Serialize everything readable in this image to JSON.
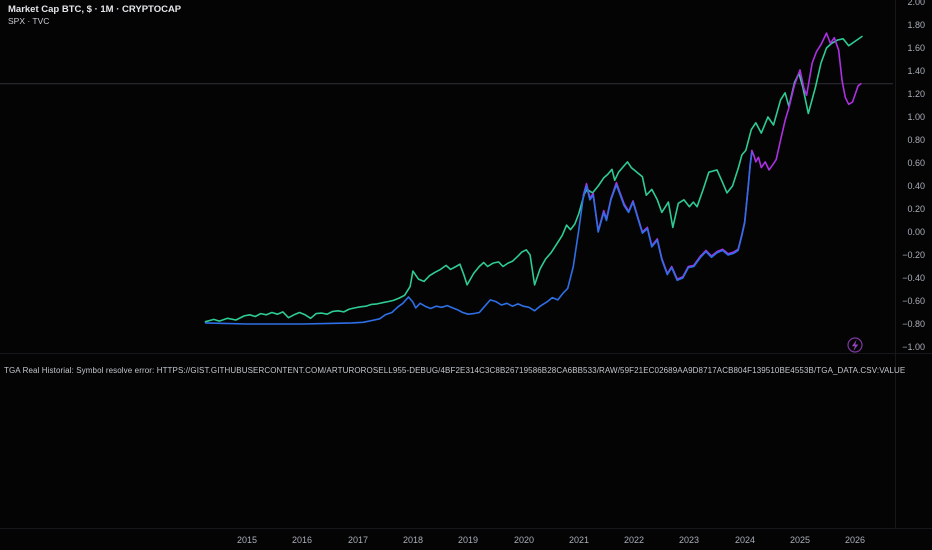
{
  "legend": {
    "primary": "Market Cap BTC, $ · 1M · CRYPTOCAP",
    "secondary": "SPX · TVC"
  },
  "error_bar": {
    "label": "TGA Real Historial: Symbol resolve error: HTTPS://GIST.GITHUBUSERCONTENT.COM/ARTUROROSELL955-DEBUG/4BF2E314C3C8B26719586B28CA6BB533/RAW/59F21EC02689AA9D8717ACB804F139510BE4553B/TGA_DATA.CSV:VALUE"
  },
  "icons": {
    "flash_badge": "lightning-bolt"
  },
  "colors": {
    "background": "#040404",
    "btc_line": "#2e6fe6",
    "spx_line": "#2ecc92",
    "overlay_line": "#ad30e3",
    "axis_text": "#a9aeb8",
    "price_line": "#2f2f37",
    "flash_badge": "#a64bd4"
  },
  "chart_data": {
    "type": "line",
    "title": "Market Cap BTC, $ · 1M · CRYPTOCAP",
    "subtitle": "SPX · TVC",
    "grid": "off",
    "legend_position": "top-left",
    "price_line_value": 1.29,
    "x_axis": {
      "tick_labels": [
        "2015",
        "2016",
        "2017",
        "2018",
        "2019",
        "2020",
        "2021",
        "2022",
        "2023",
        "2024",
        "2025",
        "2026"
      ],
      "range": [
        2014.2,
        2026.3
      ]
    },
    "y_axis": {
      "tick_labels": [
        "2.00",
        "1.80",
        "1.60",
        "1.40",
        "1.20",
        "1.00",
        "0.80",
        "0.60",
        "0.40",
        "0.20",
        "0.00",
        "−0.20",
        "−0.40",
        "−0.60",
        "−0.80",
        "−1.00"
      ],
      "range": [
        -1.05,
        2.0
      ],
      "side": "right"
    },
    "series": [
      {
        "name": "SPX",
        "color_key": "spx_line",
        "points": [
          [
            2014.25,
            -0.78
          ],
          [
            2014.4,
            -0.76
          ],
          [
            2014.5,
            -0.775
          ],
          [
            2014.65,
            -0.75
          ],
          [
            2014.8,
            -0.765
          ],
          [
            2014.95,
            -0.73
          ],
          [
            2015.05,
            -0.72
          ],
          [
            2015.15,
            -0.735
          ],
          [
            2015.25,
            -0.71
          ],
          [
            2015.35,
            -0.72
          ],
          [
            2015.45,
            -0.7
          ],
          [
            2015.55,
            -0.715
          ],
          [
            2015.65,
            -0.695
          ],
          [
            2015.75,
            -0.745
          ],
          [
            2015.85,
            -0.72
          ],
          [
            2015.95,
            -0.7
          ],
          [
            2016.05,
            -0.72
          ],
          [
            2016.15,
            -0.75
          ],
          [
            2016.25,
            -0.71
          ],
          [
            2016.35,
            -0.705
          ],
          [
            2016.45,
            -0.715
          ],
          [
            2016.55,
            -0.69
          ],
          [
            2016.65,
            -0.685
          ],
          [
            2016.75,
            -0.695
          ],
          [
            2016.85,
            -0.67
          ],
          [
            2016.95,
            -0.66
          ],
          [
            2017.05,
            -0.65
          ],
          [
            2017.15,
            -0.645
          ],
          [
            2017.25,
            -0.63
          ],
          [
            2017.35,
            -0.625
          ],
          [
            2017.45,
            -0.615
          ],
          [
            2017.55,
            -0.605
          ],
          [
            2017.65,
            -0.595
          ],
          [
            2017.75,
            -0.575
          ],
          [
            2017.85,
            -0.55
          ],
          [
            2017.95,
            -0.475
          ],
          [
            2018.0,
            -0.34
          ],
          [
            2018.1,
            -0.41
          ],
          [
            2018.2,
            -0.43
          ],
          [
            2018.3,
            -0.38
          ],
          [
            2018.4,
            -0.35
          ],
          [
            2018.5,
            -0.325
          ],
          [
            2018.6,
            -0.29
          ],
          [
            2018.68,
            -0.325
          ],
          [
            2018.78,
            -0.3
          ],
          [
            2018.85,
            -0.28
          ],
          [
            2018.92,
            -0.37
          ],
          [
            2018.98,
            -0.46
          ],
          [
            2019.1,
            -0.36
          ],
          [
            2019.2,
            -0.3
          ],
          [
            2019.28,
            -0.265
          ],
          [
            2019.35,
            -0.3
          ],
          [
            2019.45,
            -0.27
          ],
          [
            2019.55,
            -0.26
          ],
          [
            2019.63,
            -0.3
          ],
          [
            2019.72,
            -0.27
          ],
          [
            2019.8,
            -0.255
          ],
          [
            2019.9,
            -0.21
          ],
          [
            2019.97,
            -0.175
          ],
          [
            2020.05,
            -0.155
          ],
          [
            2020.12,
            -0.2
          ],
          [
            2020.2,
            -0.46
          ],
          [
            2020.3,
            -0.32
          ],
          [
            2020.4,
            -0.235
          ],
          [
            2020.5,
            -0.18
          ],
          [
            2020.6,
            -0.105
          ],
          [
            2020.7,
            -0.03
          ],
          [
            2020.78,
            0.06
          ],
          [
            2020.85,
            0.02
          ],
          [
            2020.93,
            0.07
          ],
          [
            2021.0,
            0.16
          ],
          [
            2021.1,
            0.33
          ],
          [
            2021.15,
            0.37
          ],
          [
            2021.25,
            0.34
          ],
          [
            2021.35,
            0.4
          ],
          [
            2021.45,
            0.47
          ],
          [
            2021.52,
            0.5
          ],
          [
            2021.6,
            0.545
          ],
          [
            2021.65,
            0.45
          ],
          [
            2021.72,
            0.52
          ],
          [
            2021.8,
            0.565
          ],
          [
            2021.88,
            0.61
          ],
          [
            2021.95,
            0.56
          ],
          [
            2022.05,
            0.52
          ],
          [
            2022.15,
            0.48
          ],
          [
            2022.22,
            0.32
          ],
          [
            2022.32,
            0.37
          ],
          [
            2022.42,
            0.28
          ],
          [
            2022.5,
            0.17
          ],
          [
            2022.62,
            0.26
          ],
          [
            2022.7,
            0.04
          ],
          [
            2022.8,
            0.25
          ],
          [
            2022.9,
            0.28
          ],
          [
            2023.0,
            0.22
          ],
          [
            2023.07,
            0.26
          ],
          [
            2023.14,
            0.22
          ],
          [
            2023.25,
            0.37
          ],
          [
            2023.35,
            0.52
          ],
          [
            2023.5,
            0.54
          ],
          [
            2023.6,
            0.43
          ],
          [
            2023.68,
            0.34
          ],
          [
            2023.78,
            0.4
          ],
          [
            2023.88,
            0.55
          ],
          [
            2023.95,
            0.67
          ],
          [
            2024.02,
            0.71
          ],
          [
            2024.12,
            0.89
          ],
          [
            2024.2,
            0.95
          ],
          [
            2024.3,
            0.86
          ],
          [
            2024.42,
            1.0
          ],
          [
            2024.52,
            0.93
          ],
          [
            2024.65,
            1.15
          ],
          [
            2024.73,
            1.21
          ],
          [
            2024.8,
            1.09
          ],
          [
            2024.9,
            1.3
          ],
          [
            2024.98,
            1.38
          ],
          [
            2025.05,
            1.26
          ],
          [
            2025.15,
            1.03
          ],
          [
            2025.28,
            1.26
          ],
          [
            2025.38,
            1.47
          ],
          [
            2025.48,
            1.6
          ],
          [
            2025.57,
            1.64
          ],
          [
            2025.68,
            1.67
          ],
          [
            2025.78,
            1.68
          ],
          [
            2025.88,
            1.62
          ],
          [
            2026.0,
            1.66
          ],
          [
            2026.12,
            1.7
          ]
        ]
      },
      {
        "name": "Overlay (purple)",
        "color_key": "overlay_line",
        "points": [
          [
            2021.08,
            0.315
          ],
          [
            2021.14,
            0.42
          ],
          [
            2021.2,
            0.295
          ],
          [
            2021.26,
            0.335
          ],
          [
            2021.35,
            0.01
          ],
          [
            2021.45,
            0.185
          ],
          [
            2021.5,
            0.115
          ],
          [
            2021.58,
            0.29
          ],
          [
            2021.68,
            0.43
          ],
          [
            2021.75,
            0.335
          ],
          [
            2021.82,
            0.245
          ],
          [
            2021.9,
            0.18
          ],
          [
            2021.98,
            0.27
          ],
          [
            2022.08,
            0.11
          ],
          [
            2022.15,
            0.0
          ],
          [
            2022.24,
            0.04
          ],
          [
            2022.32,
            -0.12
          ],
          [
            2022.42,
            -0.06
          ],
          [
            2022.5,
            -0.23
          ],
          [
            2022.6,
            -0.36
          ],
          [
            2022.68,
            -0.3
          ],
          [
            2022.78,
            -0.41
          ],
          [
            2022.88,
            -0.39
          ],
          [
            2022.98,
            -0.3
          ],
          [
            2023.08,
            -0.29
          ],
          [
            2023.2,
            -0.21
          ],
          [
            2023.3,
            -0.16
          ],
          [
            2023.4,
            -0.21
          ],
          [
            2023.5,
            -0.17
          ],
          [
            2023.6,
            -0.15
          ],
          [
            2023.7,
            -0.19
          ],
          [
            2023.8,
            -0.175
          ],
          [
            2023.88,
            -0.15
          ],
          [
            2023.95,
            -0.02
          ],
          [
            2024.0,
            0.09
          ],
          [
            2024.06,
            0.38
          ],
          [
            2024.1,
            0.59
          ],
          [
            2024.13,
            0.71
          ],
          [
            2024.17,
            0.66
          ],
          [
            2024.2,
            0.61
          ],
          [
            2024.25,
            0.65
          ],
          [
            2024.3,
            0.56
          ],
          [
            2024.37,
            0.61
          ],
          [
            2024.44,
            0.54
          ],
          [
            2024.5,
            0.58
          ],
          [
            2024.57,
            0.63
          ],
          [
            2024.65,
            0.8
          ],
          [
            2024.73,
            0.97
          ],
          [
            2024.8,
            1.08
          ],
          [
            2024.9,
            1.28
          ],
          [
            2025.0,
            1.41
          ],
          [
            2025.07,
            1.25
          ],
          [
            2025.12,
            1.19
          ],
          [
            2025.22,
            1.47
          ],
          [
            2025.3,
            1.57
          ],
          [
            2025.38,
            1.63
          ],
          [
            2025.48,
            1.73
          ],
          [
            2025.55,
            1.64
          ],
          [
            2025.62,
            1.69
          ],
          [
            2025.7,
            1.58
          ],
          [
            2025.76,
            1.32
          ],
          [
            2025.82,
            1.17
          ],
          [
            2025.88,
            1.11
          ],
          [
            2025.95,
            1.13
          ],
          [
            2026.05,
            1.27
          ],
          [
            2026.1,
            1.29
          ]
        ]
      },
      {
        "name": "Market Cap BTC",
        "color_key": "btc_line",
        "points": [
          [
            2014.25,
            -0.79
          ],
          [
            2014.6,
            -0.795
          ],
          [
            2015.0,
            -0.8
          ],
          [
            2015.5,
            -0.8
          ],
          [
            2016.0,
            -0.8
          ],
          [
            2016.5,
            -0.795
          ],
          [
            2016.9,
            -0.79
          ],
          [
            2017.1,
            -0.785
          ],
          [
            2017.25,
            -0.77
          ],
          [
            2017.4,
            -0.755
          ],
          [
            2017.5,
            -0.72
          ],
          [
            2017.62,
            -0.7
          ],
          [
            2017.73,
            -0.65
          ],
          [
            2017.82,
            -0.62
          ],
          [
            2017.92,
            -0.565
          ],
          [
            2018.0,
            -0.61
          ],
          [
            2018.05,
            -0.66
          ],
          [
            2018.13,
            -0.62
          ],
          [
            2018.22,
            -0.645
          ],
          [
            2018.32,
            -0.665
          ],
          [
            2018.42,
            -0.645
          ],
          [
            2018.52,
            -0.655
          ],
          [
            2018.62,
            -0.64
          ],
          [
            2018.72,
            -0.66
          ],
          [
            2018.8,
            -0.675
          ],
          [
            2018.9,
            -0.7
          ],
          [
            2019.0,
            -0.715
          ],
          [
            2019.1,
            -0.71
          ],
          [
            2019.2,
            -0.7
          ],
          [
            2019.3,
            -0.645
          ],
          [
            2019.4,
            -0.59
          ],
          [
            2019.5,
            -0.605
          ],
          [
            2019.6,
            -0.635
          ],
          [
            2019.7,
            -0.62
          ],
          [
            2019.8,
            -0.645
          ],
          [
            2019.9,
            -0.625
          ],
          [
            2020.0,
            -0.645
          ],
          [
            2020.1,
            -0.655
          ],
          [
            2020.2,
            -0.685
          ],
          [
            2020.3,
            -0.645
          ],
          [
            2020.42,
            -0.61
          ],
          [
            2020.52,
            -0.57
          ],
          [
            2020.62,
            -0.59
          ],
          [
            2020.72,
            -0.53
          ],
          [
            2020.8,
            -0.49
          ],
          [
            2020.9,
            -0.3
          ],
          [
            2021.0,
            0.02
          ],
          [
            2021.08,
            0.3
          ],
          [
            2021.14,
            0.4
          ],
          [
            2021.2,
            0.28
          ],
          [
            2021.26,
            0.32
          ],
          [
            2021.35,
            0.0
          ],
          [
            2021.45,
            0.17
          ],
          [
            2021.5,
            0.1
          ],
          [
            2021.58,
            0.28
          ],
          [
            2021.68,
            0.41
          ],
          [
            2021.75,
            0.32
          ],
          [
            2021.82,
            0.23
          ],
          [
            2021.9,
            0.17
          ],
          [
            2021.98,
            0.26
          ],
          [
            2022.08,
            0.1
          ],
          [
            2022.15,
            -0.01
          ],
          [
            2022.24,
            0.03
          ],
          [
            2022.32,
            -0.13
          ],
          [
            2022.42,
            -0.07
          ],
          [
            2022.5,
            -0.24
          ],
          [
            2022.6,
            -0.37
          ],
          [
            2022.68,
            -0.31
          ],
          [
            2022.78,
            -0.42
          ],
          [
            2022.88,
            -0.4
          ],
          [
            2022.98,
            -0.31
          ],
          [
            2023.08,
            -0.3
          ],
          [
            2023.2,
            -0.22
          ],
          [
            2023.3,
            -0.17
          ],
          [
            2023.4,
            -0.22
          ],
          [
            2023.5,
            -0.18
          ],
          [
            2023.6,
            -0.16
          ],
          [
            2023.7,
            -0.2
          ],
          [
            2023.8,
            -0.185
          ],
          [
            2023.88,
            -0.16
          ],
          [
            2023.95,
            -0.03
          ],
          [
            2024.0,
            0.08
          ],
          [
            2024.06,
            0.37
          ],
          [
            2024.1,
            0.58
          ],
          [
            2024.13,
            0.69
          ]
        ]
      }
    ]
  }
}
